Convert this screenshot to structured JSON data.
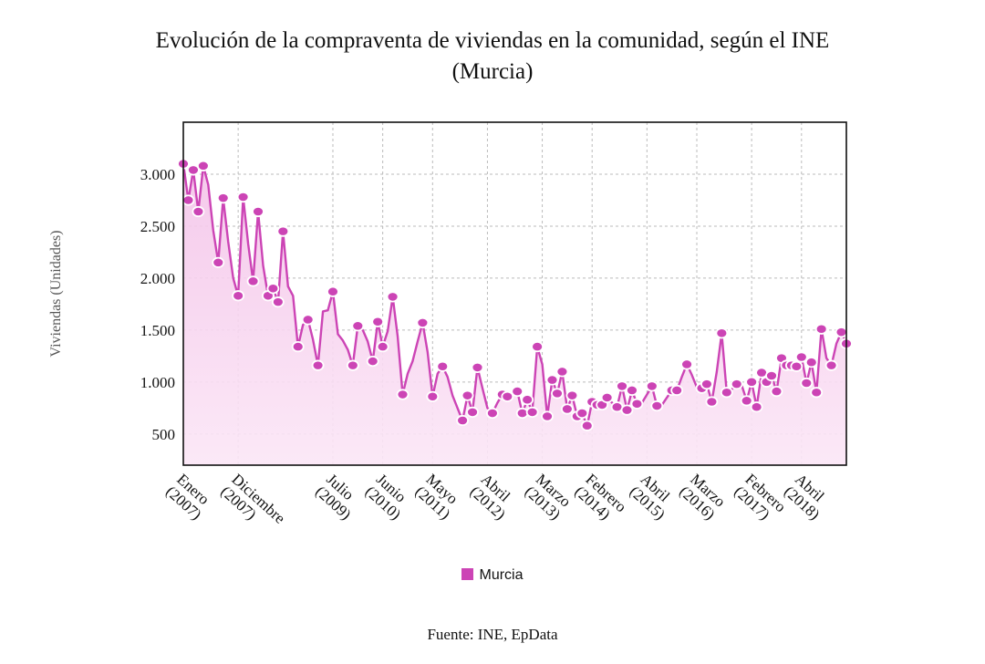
{
  "chart_data": {
    "type": "line",
    "title_line1": "Evolución de la compraventa de viviendas en la comunidad, según el INE",
    "title_line2": "(Murcia)",
    "ylabel": "Viviendas (Unidades)",
    "xlabel": "",
    "ylim": [
      200,
      3500
    ],
    "yticks": [
      500,
      1000,
      1500,
      2000,
      2500,
      3000
    ],
    "ytick_labels": [
      "500",
      "1.000",
      "1.500",
      "2.000",
      "2.500",
      "3.000"
    ],
    "grid": true,
    "legend_position": "bottom",
    "x_label_indices": [
      0,
      11,
      30,
      40,
      50,
      61,
      72,
      82,
      93,
      103,
      114,
      124
    ],
    "x_tick_labels": [
      [
        "Enero",
        "(2007)"
      ],
      [
        "Diciembre",
        "(2007)"
      ],
      [
        "Julio",
        "(2009)"
      ],
      [
        "Junio",
        "(2010)"
      ],
      [
        "Mayo",
        "(2011)"
      ],
      [
        "Abril",
        "(2012)"
      ],
      [
        "Marzo",
        "(2013)"
      ],
      [
        "Febrero",
        "(2014)"
      ],
      [
        "Abril",
        "(2015)"
      ],
      [
        "Marzo",
        "(2016)"
      ],
      [
        "Febrero",
        "(2017)"
      ],
      [
        "Abril",
        "(2018)"
      ]
    ],
    "series": [
      {
        "name": "Murcia",
        "color": "#cc44b5",
        "values": [
          3100,
          2750,
          3040,
          2640,
          3080,
          2900,
          2460,
          2150,
          2770,
          2350,
          2000,
          1830,
          2780,
          2330,
          1970,
          2640,
          2120,
          1830,
          1900,
          1770,
          2450,
          1920,
          1830,
          1340,
          1550,
          1600,
          1410,
          1160,
          1680,
          1690,
          1870,
          1460,
          1400,
          1310,
          1160,
          1540,
          1500,
          1390,
          1200,
          1580,
          1340,
          1490,
          1820,
          1440,
          880,
          1080,
          1200,
          1390,
          1570,
          1290,
          860,
          1080,
          1150,
          1050,
          870,
          750,
          630,
          870,
          710,
          1140,
          940,
          750,
          700,
          800,
          880,
          860,
          880,
          910,
          700,
          830,
          710,
          1340,
          1170,
          670,
          1020,
          890,
          1100,
          740,
          870,
          670,
          700,
          580,
          810,
          780,
          780,
          850,
          800,
          760,
          960,
          730,
          920,
          790,
          800,
          880,
          960,
          770,
          780,
          850,
          920,
          920,
          1050,
          1170,
          1070,
          950,
          940,
          980,
          810,
          1100,
          1470,
          900,
          930,
          980,
          970,
          820,
          1000,
          760,
          1090,
          1000,
          1060,
          910,
          1230,
          1160,
          1160,
          1150,
          1240,
          990,
          1190,
          900,
          1510,
          1230,
          1160,
          1370,
          1480,
          1370
        ]
      }
    ]
  },
  "legend": {
    "label": "Murcia"
  },
  "footer": {
    "source": "Fuente: INE, EpData"
  }
}
